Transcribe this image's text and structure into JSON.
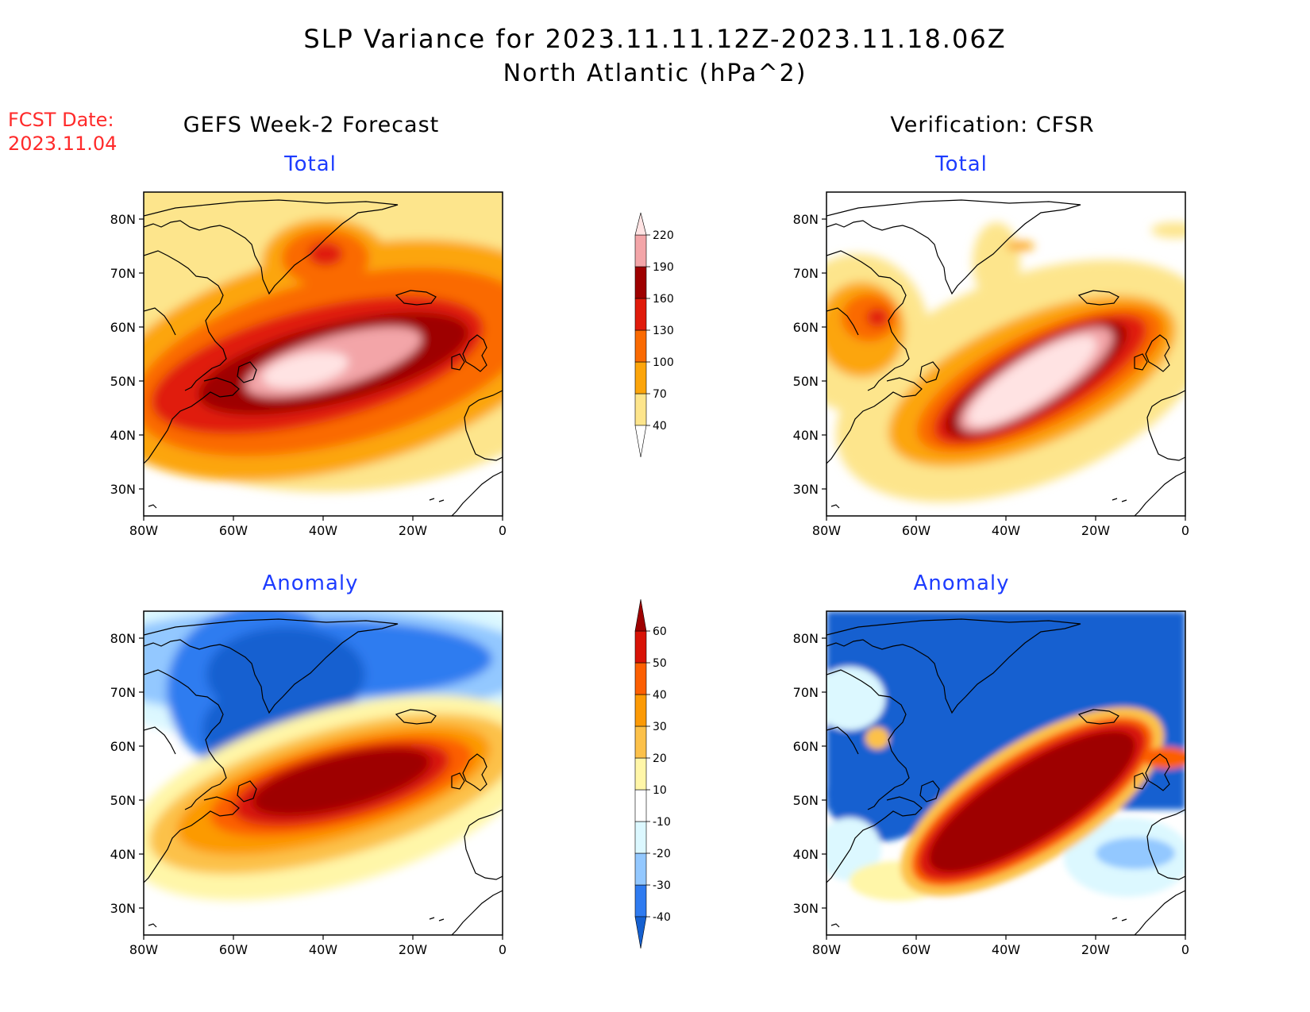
{
  "title": {
    "line1": "SLP Variance for 2023.11.11.12Z-2023.11.18.06Z",
    "line2": "North Atlantic (hPa^2)"
  },
  "fcst_date": {
    "label": "FCST Date:",
    "value": "2023.11.04"
  },
  "columns": {
    "left": "GEFS Week-2 Forecast",
    "right": "Verification: CFSR"
  },
  "subtitles": {
    "total": "Total",
    "anomaly": "Anomaly"
  },
  "axes": {
    "lat_labels": [
      "80N",
      "70N",
      "60N",
      "50N",
      "40N",
      "30N"
    ],
    "lon_labels": [
      "80W",
      "60W",
      "40W",
      "20W",
      "0"
    ],
    "lat_range": [
      25,
      85
    ],
    "lon_range": [
      -80,
      0
    ]
  },
  "colorbars": {
    "total": {
      "levels": [
        "40",
        "70",
        "100",
        "130",
        "160",
        "190",
        "220"
      ],
      "colors": [
        "#fde58c",
        "#fca50b",
        "#fa6a02",
        "#e01b0b",
        "#9e0000",
        "#f3a5a8",
        "#ffe3e3"
      ]
    },
    "anomaly": {
      "levels": [
        "-40",
        "-30",
        "-20",
        "-10",
        "10",
        "20",
        "30",
        "40",
        "50",
        "60"
      ],
      "colors": [
        "#1560d0",
        "#2f7bf0",
        "#93c8ff",
        "#dcf8ff",
        "#ffffff",
        "#fff6a8",
        "#fcc14a",
        "#fc9a05",
        "#fc5f02",
        "#d81307",
        "#9e0000"
      ]
    }
  },
  "chart_data": [
    {
      "type": "heatmap",
      "panel": "GEFS Week-2 Forecast",
      "subtitle": "Total",
      "unit": "hPa^2",
      "features": [
        {
          "lon": -45,
          "lat": 51,
          "value_range": "190-220+",
          "description_level": "max"
        },
        {
          "lon": -40,
          "lat": 73,
          "value_range": "130-160"
        }
      ]
    },
    {
      "type": "heatmap",
      "panel": "Verification: CFSR",
      "subtitle": "Total",
      "unit": "hPa^2",
      "features": [
        {
          "lon": -30,
          "lat": 49,
          "value_range": "220+"
        },
        {
          "lon": -67,
          "lat": 61,
          "value_range": "130-160"
        }
      ]
    },
    {
      "type": "heatmap",
      "panel": "GEFS Week-2 Forecast",
      "subtitle": "Anomaly",
      "unit": "hPa^2",
      "features": [
        {
          "lon": -35,
          "lat": 53,
          "value_range": "60+"
        },
        {
          "lon": -40,
          "lat": 72,
          "value_range": "-40 or less"
        }
      ]
    },
    {
      "type": "heatmap",
      "panel": "Verification: CFSR",
      "subtitle": "Anomaly",
      "unit": "hPa^2",
      "features": [
        {
          "lon": -32,
          "lat": 48,
          "value_range": "60+"
        },
        {
          "lon": -40,
          "lat": 70,
          "value_range": "-40 or less"
        }
      ]
    }
  ]
}
